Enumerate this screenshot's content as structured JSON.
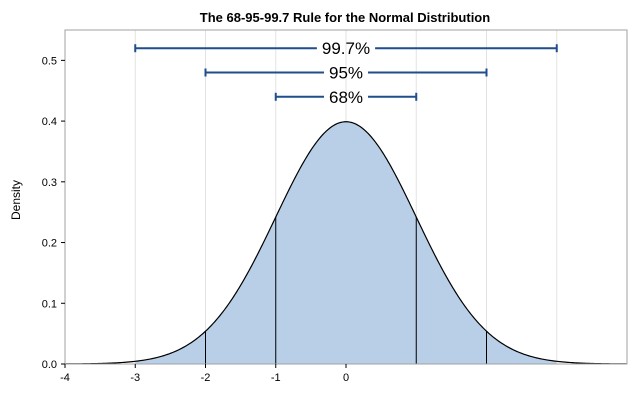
{
  "chart_data": {
    "type": "area",
    "title": "The 68-95-99.7 Rule for the Normal Distribution",
    "xlabel": "",
    "ylabel": "Density",
    "xlim": [
      -4,
      4
    ],
    "ylim": [
      0,
      0.55
    ],
    "x_ticks": [
      -4,
      -3,
      -2,
      -1,
      0
    ],
    "y_ticks": [
      0.0,
      0.1,
      0.2,
      0.3,
      0.4,
      0.5
    ],
    "y_tick_labels": [
      "0.0",
      "0.1",
      "0.2",
      "0.3",
      "0.4",
      "0.5"
    ],
    "grid": "vertical",
    "curve": {
      "mean": 0,
      "sd": 1
    },
    "sd_lines": [
      -2,
      -1,
      1,
      2
    ],
    "shaded_range": [
      -3,
      3
    ],
    "intervals": [
      {
        "label": "99.7%",
        "from": -3,
        "to": 3,
        "y": 0.52
      },
      {
        "label": "95%",
        "from": -2,
        "to": 2,
        "y": 0.48
      },
      {
        "label": "68%",
        "from": -1,
        "to": 1,
        "y": 0.44
      }
    ],
    "colors": {
      "fill": "#b9cfe8",
      "curve": "#000000",
      "interval": "#1f4e8c",
      "grid": "#e3e3e3",
      "frame": "#a0a0a0"
    }
  }
}
